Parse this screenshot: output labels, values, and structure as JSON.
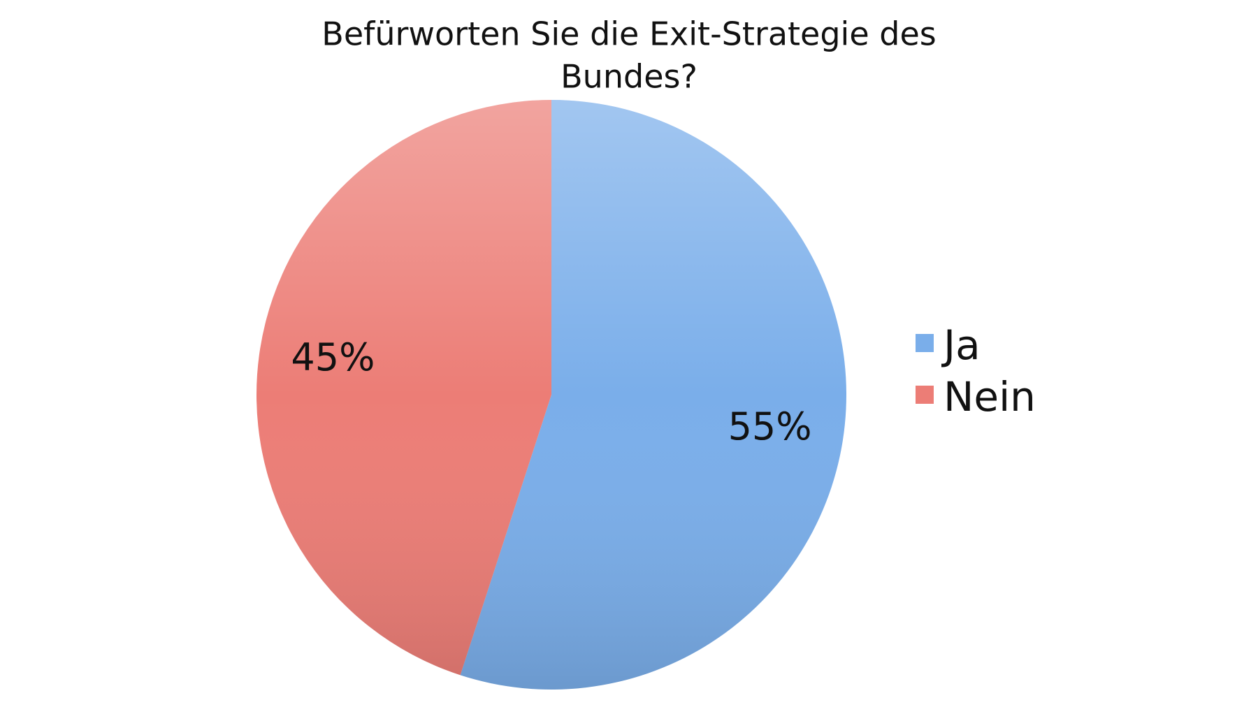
{
  "chart_data": {
    "type": "pie",
    "title": [
      "Befürworten Sie die Exit-Strategie des",
      "Bundes?"
    ],
    "categories": [
      "Ja",
      "Nein"
    ],
    "values": [
      55,
      45
    ],
    "value_labels": [
      "55%",
      "45%"
    ],
    "colors": [
      "#7aaeea",
      "#ec7d76"
    ],
    "legend": "right"
  }
}
